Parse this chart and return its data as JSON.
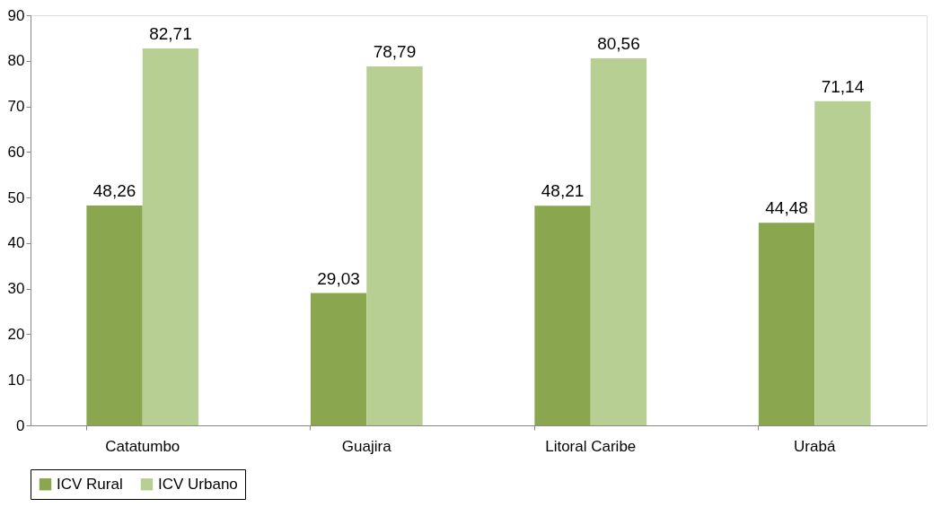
{
  "chart_data": {
    "type": "bar",
    "categories": [
      "Catatumbo",
      "Guajira",
      "Litoral Caribe",
      "Urabá"
    ],
    "series": [
      {
        "name": "ICV Rural",
        "color": "#8aa74f",
        "values": [
          48.26,
          29.03,
          48.21,
          44.48
        ],
        "value_labels": [
          "48,26",
          "29,03",
          "48,21",
          "44,48"
        ]
      },
      {
        "name": "ICV Urbano",
        "color": "#b8cf94",
        "values": [
          82.71,
          78.79,
          80.56,
          71.14
        ],
        "value_labels": [
          "82,71",
          "78,79",
          "80,56",
          "71,14"
        ]
      }
    ],
    "ylim": [
      0,
      90
    ],
    "yticks": [
      0,
      10,
      20,
      30,
      40,
      50,
      60,
      70,
      80,
      90
    ],
    "legend": "bottom"
  }
}
